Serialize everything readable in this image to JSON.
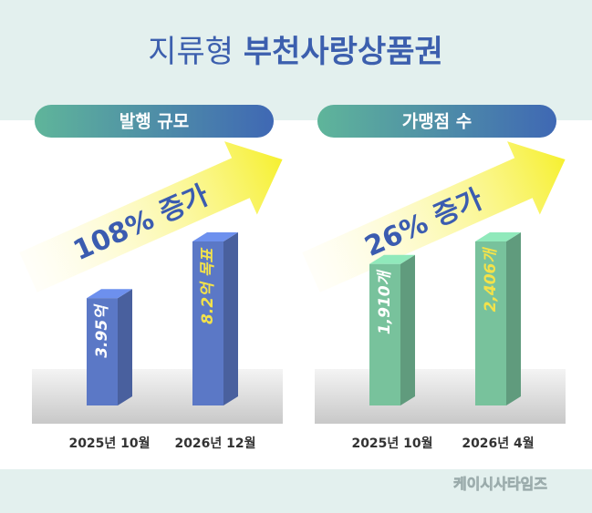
{
  "header": {
    "title_light": "지류형",
    "title_bold": "부천사랑상품권"
  },
  "chart_data": [
    {
      "type": "bar",
      "title": "발행 규모",
      "categories": [
        "2025년 10월",
        "2026년 12월"
      ],
      "values": [
        3.95,
        8.2
      ],
      "value_labels": [
        "3.95억",
        "8.2억 목표"
      ],
      "value_label_colors": [
        "#ffffff",
        "#f3e24a"
      ],
      "color": "#5b78c6",
      "annotation": "108% 증가"
    },
    {
      "type": "bar",
      "title": "가맹점 수",
      "categories": [
        "2025년 10월",
        "2026년 4월"
      ],
      "values": [
        1910,
        2406
      ],
      "value_labels": [
        "1,910개",
        "2,406개"
      ],
      "value_label_colors": [
        "#ffffff",
        "#f3e24a"
      ],
      "color": "#78c29c",
      "annotation": "26% 증가"
    }
  ],
  "footer": {
    "source": "케이시사타임즈"
  }
}
